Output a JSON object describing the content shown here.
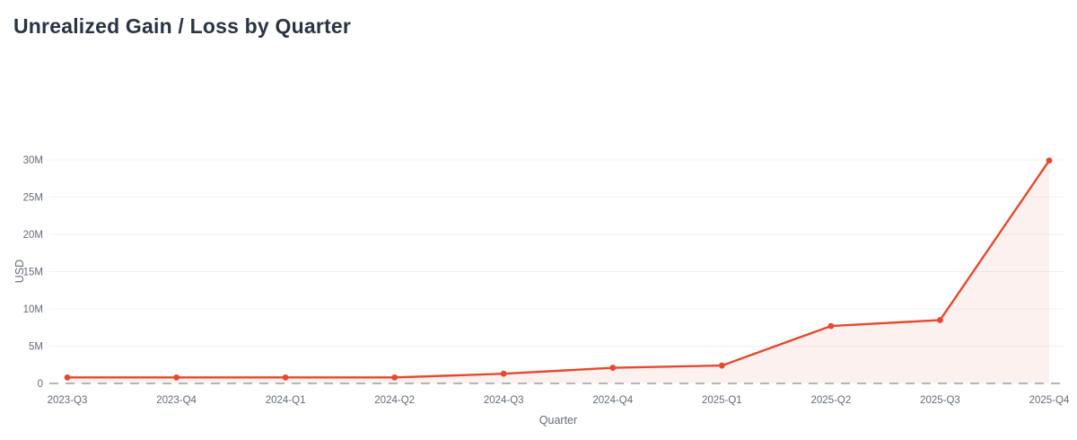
{
  "page": {
    "title": "Unrealized Gain / Loss by Quarter"
  },
  "chart_data": {
    "type": "area",
    "title": "Unrealized Gain / Loss by Quarter",
    "xlabel": "Quarter",
    "ylabel": "USD",
    "categories": [
      "2023-Q3",
      "2023-Q4",
      "2024-Q1",
      "2024-Q2",
      "2024-Q3",
      "2024-Q4",
      "2025-Q1",
      "2025-Q2",
      "2025-Q3",
      "2025-Q4"
    ],
    "series": [
      {
        "name": "Unrealized Gain / Loss",
        "values": [
          800000,
          800000,
          800000,
          800000,
          1300000,
          2100000,
          2400000,
          7700000,
          8500000,
          29900000
        ]
      }
    ],
    "ylim": [
      0,
      30000000
    ],
    "ytick_values": [
      0,
      5000000,
      10000000,
      15000000,
      20000000,
      25000000,
      30000000
    ],
    "ytick_labels": [
      "0",
      "5M",
      "10M",
      "15M",
      "20M",
      "25M",
      "30M"
    ],
    "grid": true,
    "legend_position": "none",
    "zero_baseline_style": "dashed",
    "colors": {
      "line": "#e5492f",
      "marker": "#e5492f",
      "area_fill": "rgba(229, 73, 47, 0.08)",
      "gridline": "#f0f1f4",
      "zero_line": "#999fa8",
      "tick_text": "#646b78",
      "axis_name_text": "#646b78",
      "title_text": "#2b3342"
    }
  }
}
